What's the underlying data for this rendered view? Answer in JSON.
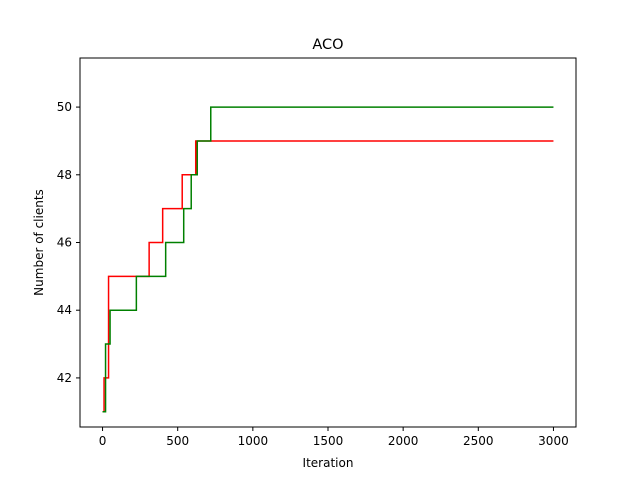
{
  "chart_data": {
    "type": "line",
    "title": "ACO",
    "xlabel": "Iteration",
    "ylabel": "Number of clients",
    "xlim": [
      -150,
      3150
    ],
    "ylim": [
      40.55,
      51.45
    ],
    "xticks": [
      0,
      500,
      1000,
      1500,
      2000,
      2500,
      3000
    ],
    "yticks": [
      42,
      44,
      46,
      48,
      50
    ],
    "grid": false,
    "legend": "none",
    "series": [
      {
        "color": "#ff0000",
        "step": "post",
        "x": [
          0,
          10,
          40,
          310,
          400,
          530,
          620,
          3000
        ],
        "y": [
          41,
          42,
          45,
          46,
          47,
          48,
          49,
          49
        ]
      },
      {
        "color": "#008000",
        "step": "post",
        "x": [
          0,
          20,
          50,
          225,
          420,
          540,
          590,
          630,
          720,
          3000
        ],
        "y": [
          41,
          43,
          44,
          45,
          46,
          47,
          48,
          49,
          50,
          50
        ]
      }
    ]
  }
}
